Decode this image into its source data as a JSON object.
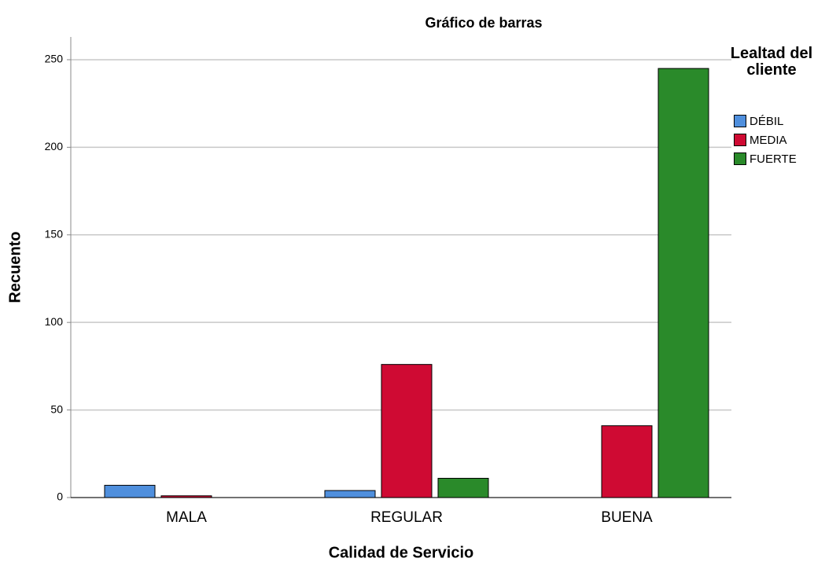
{
  "chart_data": {
    "type": "bar",
    "title": "Gráfico de barras",
    "x_label": "Calidad de Servicio",
    "y_label": "Recuento",
    "legend_title": "Lealtad del cliente",
    "categories": [
      "MALA",
      "REGULAR",
      "BUENA"
    ],
    "series": [
      {
        "name": "DÉBIL",
        "color": "#4f8fdd",
        "values": [
          7,
          4,
          0
        ]
      },
      {
        "name": "MEDIA",
        "color": "#cf0a33",
        "values": [
          1,
          76,
          41
        ]
      },
      {
        "name": "FUERTE",
        "color": "#2a8a2a",
        "values": [
          0,
          11,
          245
        ]
      }
    ],
    "ylim": [
      0,
      263
    ],
    "yticks": [
      0,
      50,
      100,
      150,
      200,
      250
    ],
    "grid": true
  }
}
